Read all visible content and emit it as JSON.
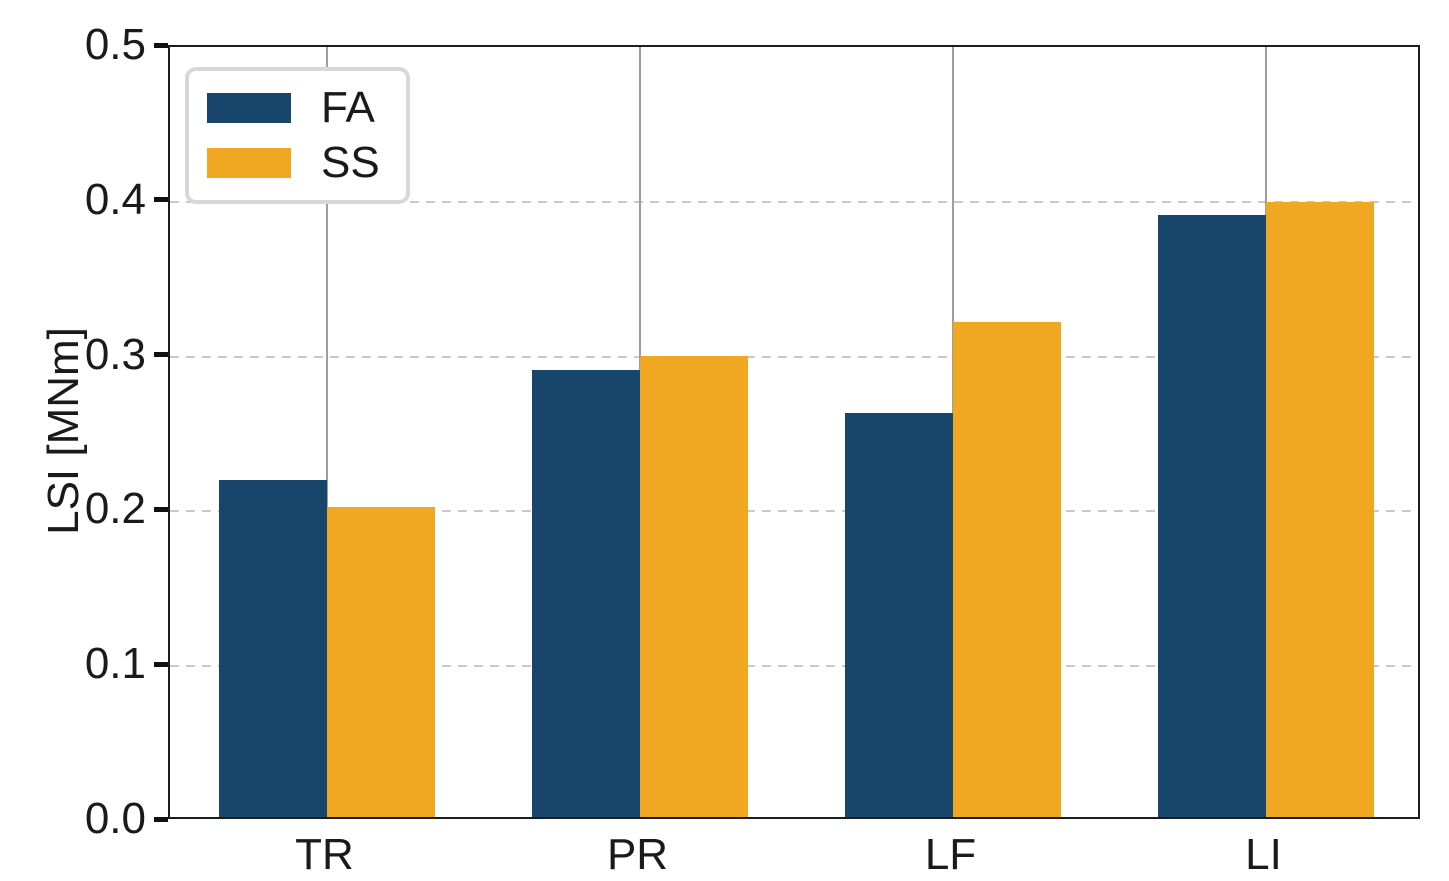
{
  "chart_data": {
    "type": "bar",
    "title": "",
    "xlabel": "",
    "ylabel": "LSI [MNm]",
    "categories": [
      "TR",
      "PR",
      "LF",
      "LI"
    ],
    "series": [
      {
        "name": "FA",
        "color": "#17456B",
        "values": [
          0.218,
          0.289,
          0.261,
          0.389
        ]
      },
      {
        "name": "SS",
        "color": "#F0A822",
        "values": [
          0.2,
          0.298,
          0.32,
          0.397
        ]
      }
    ],
    "ylim": [
      0,
      0.5
    ],
    "yticks": [
      0.0,
      0.1,
      0.2,
      0.3,
      0.4,
      0.5
    ],
    "ytick_labels": [
      "0.0",
      "0.1",
      "0.2",
      "0.3",
      "0.4",
      "0.5"
    ],
    "grid": {
      "vertical": "solid",
      "horizontal": "dashed",
      "grid_on": true
    },
    "legend": {
      "position": "upper-left",
      "entries": [
        "FA",
        "SS"
      ]
    }
  },
  "style": {
    "fa_color": "#17456B",
    "ss_color": "#F0A822",
    "spine_color": "#1c1c1c",
    "vertical_grid_color": "#9e9e9e",
    "horizontal_grid_color": "#c9c9c9",
    "legend_border_color": "#d8d8d8",
    "text_color": "#1a1a1a",
    "background_color": "#ffffff"
  }
}
